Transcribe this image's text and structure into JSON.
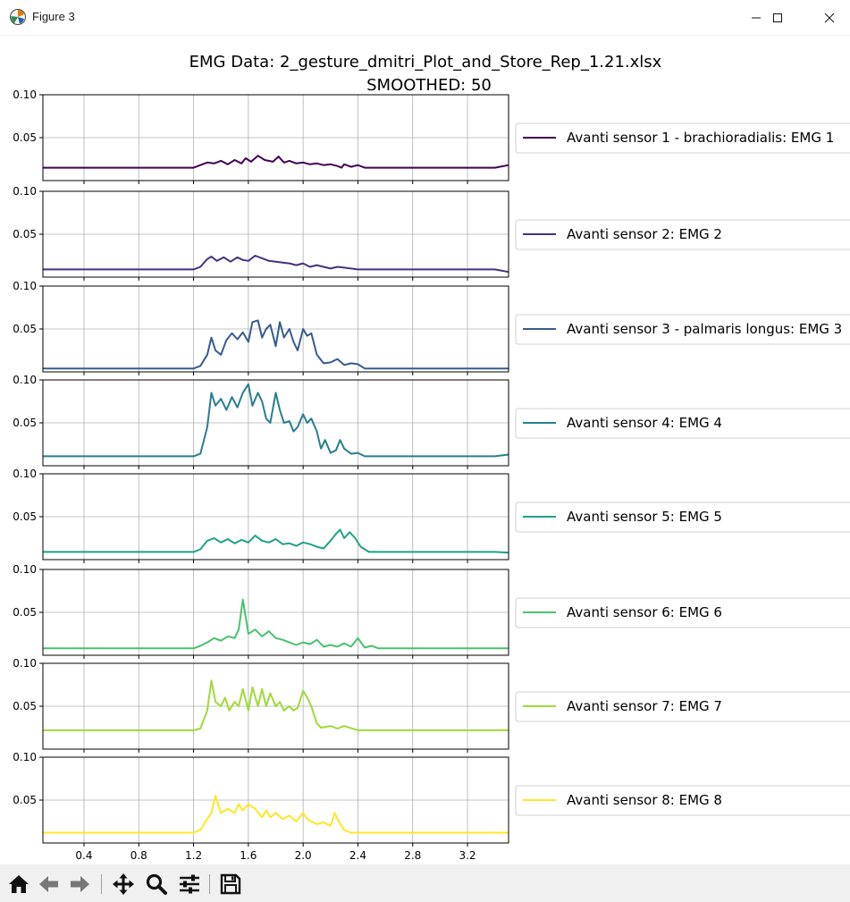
{
  "window": {
    "title": "Figure 3",
    "controls": [
      "minimize",
      "maximize",
      "close"
    ]
  },
  "toolbar": {
    "buttons": [
      "home-icon",
      "back-icon",
      "forward-icon",
      "pan-icon",
      "zoom-icon",
      "configure-subplots-icon",
      "save-icon"
    ]
  },
  "chart_data": {
    "type": "line",
    "title": "EMG Data: 2_gesture_dmitri_Plot_and_Store_Rep_1.21.xlsx",
    "subtitle": "SMOOTHED: 50",
    "xlim": [
      0.1,
      3.5
    ],
    "xticks": [
      "0.4",
      "0.8",
      "1.2",
      "1.6",
      "2.0",
      "2.4",
      "2.8",
      "3.2"
    ],
    "ylim": [
      0,
      0.1
    ],
    "yticks": [
      "0.05",
      "0.10"
    ],
    "grid": true,
    "legend_position": "right",
    "shared_x": true,
    "series": [
      {
        "name": "Avanti sensor 1 - brachioradialis: EMG 1",
        "color": "#440154",
        "baseline": 0.015,
        "points": [
          [
            0.1,
            0.015
          ],
          [
            1.2,
            0.015
          ],
          [
            1.25,
            0.018
          ],
          [
            1.3,
            0.021
          ],
          [
            1.35,
            0.02
          ],
          [
            1.4,
            0.023
          ],
          [
            1.45,
            0.019
          ],
          [
            1.5,
            0.024
          ],
          [
            1.55,
            0.02
          ],
          [
            1.58,
            0.026
          ],
          [
            1.62,
            0.022
          ],
          [
            1.67,
            0.029
          ],
          [
            1.72,
            0.024
          ],
          [
            1.78,
            0.022
          ],
          [
            1.82,
            0.028
          ],
          [
            1.86,
            0.021
          ],
          [
            1.9,
            0.023
          ],
          [
            1.95,
            0.02
          ],
          [
            2.0,
            0.021
          ],
          [
            2.05,
            0.019
          ],
          [
            2.1,
            0.02
          ],
          [
            2.15,
            0.018
          ],
          [
            2.2,
            0.019
          ],
          [
            2.25,
            0.017
          ],
          [
            2.28,
            0.015
          ],
          [
            2.3,
            0.019
          ],
          [
            2.35,
            0.016
          ],
          [
            2.4,
            0.018
          ],
          [
            2.45,
            0.015
          ],
          [
            3.4,
            0.015
          ],
          [
            3.5,
            0.018
          ]
        ]
      },
      {
        "name": "Avanti sensor 2: EMG 2",
        "color": "#46327e",
        "baseline": 0.009,
        "points": [
          [
            0.1,
            0.009
          ],
          [
            1.2,
            0.009
          ],
          [
            1.25,
            0.012
          ],
          [
            1.3,
            0.021
          ],
          [
            1.33,
            0.024
          ],
          [
            1.37,
            0.019
          ],
          [
            1.42,
            0.023
          ],
          [
            1.47,
            0.018
          ],
          [
            1.52,
            0.023
          ],
          [
            1.56,
            0.02
          ],
          [
            1.6,
            0.019
          ],
          [
            1.65,
            0.025
          ],
          [
            1.7,
            0.022
          ],
          [
            1.75,
            0.019
          ],
          [
            1.8,
            0.018
          ],
          [
            1.85,
            0.017
          ],
          [
            1.9,
            0.016
          ],
          [
            1.95,
            0.014
          ],
          [
            2.0,
            0.016
          ],
          [
            2.05,
            0.012
          ],
          [
            2.1,
            0.014
          ],
          [
            2.15,
            0.012
          ],
          [
            2.2,
            0.01
          ],
          [
            2.25,
            0.012
          ],
          [
            2.3,
            0.011
          ],
          [
            2.4,
            0.009
          ],
          [
            3.4,
            0.009
          ],
          [
            3.5,
            0.006
          ]
        ]
      },
      {
        "name": "Avanti sensor 3 - palmaris longus: EMG 3",
        "color": "#365c8d",
        "baseline": 0.004,
        "points": [
          [
            0.1,
            0.004
          ],
          [
            1.2,
            0.004
          ],
          [
            1.25,
            0.007
          ],
          [
            1.3,
            0.02
          ],
          [
            1.33,
            0.04
          ],
          [
            1.36,
            0.025
          ],
          [
            1.4,
            0.02
          ],
          [
            1.44,
            0.037
          ],
          [
            1.48,
            0.045
          ],
          [
            1.52,
            0.038
          ],
          [
            1.56,
            0.046
          ],
          [
            1.6,
            0.035
          ],
          [
            1.63,
            0.058
          ],
          [
            1.67,
            0.06
          ],
          [
            1.7,
            0.04
          ],
          [
            1.73,
            0.05
          ],
          [
            1.76,
            0.055
          ],
          [
            1.8,
            0.03
          ],
          [
            1.83,
            0.058
          ],
          [
            1.86,
            0.04
          ],
          [
            1.9,
            0.05
          ],
          [
            1.93,
            0.035
          ],
          [
            1.96,
            0.025
          ],
          [
            2.0,
            0.05
          ],
          [
            2.03,
            0.042
          ],
          [
            2.06,
            0.045
          ],
          [
            2.1,
            0.02
          ],
          [
            2.15,
            0.01
          ],
          [
            2.2,
            0.011
          ],
          [
            2.25,
            0.015
          ],
          [
            2.3,
            0.008
          ],
          [
            2.35,
            0.01
          ],
          [
            2.4,
            0.009
          ],
          [
            2.45,
            0.004
          ],
          [
            3.4,
            0.004
          ],
          [
            3.5,
            0.004
          ]
        ]
      },
      {
        "name": "Avanti sensor 4: EMG 4",
        "color": "#277f8e",
        "baseline": 0.011,
        "points": [
          [
            0.1,
            0.011
          ],
          [
            1.2,
            0.011
          ],
          [
            1.25,
            0.014
          ],
          [
            1.3,
            0.045
          ],
          [
            1.33,
            0.085
          ],
          [
            1.36,
            0.07
          ],
          [
            1.4,
            0.078
          ],
          [
            1.44,
            0.065
          ],
          [
            1.48,
            0.08
          ],
          [
            1.52,
            0.068
          ],
          [
            1.56,
            0.085
          ],
          [
            1.6,
            0.095
          ],
          [
            1.63,
            0.07
          ],
          [
            1.67,
            0.085
          ],
          [
            1.7,
            0.075
          ],
          [
            1.73,
            0.055
          ],
          [
            1.76,
            0.05
          ],
          [
            1.8,
            0.085
          ],
          [
            1.83,
            0.065
          ],
          [
            1.86,
            0.05
          ],
          [
            1.9,
            0.052
          ],
          [
            1.93,
            0.04
          ],
          [
            1.96,
            0.045
          ],
          [
            2.0,
            0.06
          ],
          [
            2.03,
            0.05
          ],
          [
            2.06,
            0.055
          ],
          [
            2.1,
            0.04
          ],
          [
            2.13,
            0.02
          ],
          [
            2.16,
            0.03
          ],
          [
            2.2,
            0.015
          ],
          [
            2.24,
            0.018
          ],
          [
            2.27,
            0.03
          ],
          [
            2.3,
            0.02
          ],
          [
            2.35,
            0.014
          ],
          [
            2.4,
            0.015
          ],
          [
            2.45,
            0.011
          ],
          [
            3.4,
            0.011
          ],
          [
            3.5,
            0.013
          ]
        ]
      },
      {
        "name": "Avanti sensor 5: EMG 5",
        "color": "#1fa187",
        "baseline": 0.009,
        "points": [
          [
            0.1,
            0.009
          ],
          [
            1.2,
            0.009
          ],
          [
            1.25,
            0.012
          ],
          [
            1.3,
            0.022
          ],
          [
            1.35,
            0.025
          ],
          [
            1.4,
            0.02
          ],
          [
            1.45,
            0.024
          ],
          [
            1.5,
            0.019
          ],
          [
            1.55,
            0.023
          ],
          [
            1.6,
            0.02
          ],
          [
            1.65,
            0.028
          ],
          [
            1.7,
            0.022
          ],
          [
            1.75,
            0.02
          ],
          [
            1.8,
            0.024
          ],
          [
            1.85,
            0.018
          ],
          [
            1.9,
            0.019
          ],
          [
            1.95,
            0.016
          ],
          [
            2.0,
            0.02
          ],
          [
            2.05,
            0.018
          ],
          [
            2.1,
            0.015
          ],
          [
            2.15,
            0.013
          ],
          [
            2.2,
            0.022
          ],
          [
            2.24,
            0.03
          ],
          [
            2.27,
            0.035
          ],
          [
            2.3,
            0.025
          ],
          [
            2.34,
            0.032
          ],
          [
            2.38,
            0.025
          ],
          [
            2.42,
            0.015
          ],
          [
            2.48,
            0.009
          ],
          [
            3.4,
            0.009
          ],
          [
            3.5,
            0.008
          ]
        ]
      },
      {
        "name": "Avanti sensor 6: EMG 6",
        "color": "#4ac16d",
        "baseline": 0.008,
        "points": [
          [
            0.1,
            0.008
          ],
          [
            1.2,
            0.008
          ],
          [
            1.25,
            0.011
          ],
          [
            1.3,
            0.015
          ],
          [
            1.35,
            0.02
          ],
          [
            1.4,
            0.017
          ],
          [
            1.45,
            0.022
          ],
          [
            1.5,
            0.02
          ],
          [
            1.53,
            0.03
          ],
          [
            1.56,
            0.065
          ],
          [
            1.6,
            0.025
          ],
          [
            1.65,
            0.03
          ],
          [
            1.7,
            0.022
          ],
          [
            1.75,
            0.028
          ],
          [
            1.8,
            0.02
          ],
          [
            1.85,
            0.018
          ],
          [
            1.9,
            0.015
          ],
          [
            1.95,
            0.012
          ],
          [
            2.0,
            0.015
          ],
          [
            2.05,
            0.013
          ],
          [
            2.1,
            0.018
          ],
          [
            2.15,
            0.01
          ],
          [
            2.2,
            0.012
          ],
          [
            2.25,
            0.01
          ],
          [
            2.3,
            0.014
          ],
          [
            2.35,
            0.01
          ],
          [
            2.4,
            0.02
          ],
          [
            2.45,
            0.009
          ],
          [
            2.5,
            0.011
          ],
          [
            2.55,
            0.008
          ],
          [
            3.4,
            0.008
          ],
          [
            3.5,
            0.008
          ]
        ]
      },
      {
        "name": "Avanti sensor 7: EMG 7",
        "color": "#9fda3a",
        "baseline": 0.022,
        "points": [
          [
            0.1,
            0.022
          ],
          [
            1.2,
            0.022
          ],
          [
            1.25,
            0.024
          ],
          [
            1.3,
            0.045
          ],
          [
            1.33,
            0.08
          ],
          [
            1.36,
            0.055
          ],
          [
            1.4,
            0.05
          ],
          [
            1.43,
            0.06
          ],
          [
            1.46,
            0.045
          ],
          [
            1.5,
            0.055
          ],
          [
            1.53,
            0.05
          ],
          [
            1.56,
            0.07
          ],
          [
            1.6,
            0.045
          ],
          [
            1.63,
            0.072
          ],
          [
            1.67,
            0.05
          ],
          [
            1.7,
            0.07
          ],
          [
            1.73,
            0.05
          ],
          [
            1.76,
            0.065
          ],
          [
            1.8,
            0.05
          ],
          [
            1.83,
            0.055
          ],
          [
            1.86,
            0.045
          ],
          [
            1.9,
            0.05
          ],
          [
            1.93,
            0.045
          ],
          [
            1.96,
            0.048
          ],
          [
            2.0,
            0.068
          ],
          [
            2.03,
            0.06
          ],
          [
            2.06,
            0.05
          ],
          [
            2.1,
            0.03
          ],
          [
            2.13,
            0.025
          ],
          [
            2.2,
            0.027
          ],
          [
            2.25,
            0.024
          ],
          [
            2.3,
            0.027
          ],
          [
            2.4,
            0.022
          ],
          [
            3.4,
            0.022
          ],
          [
            3.5,
            0.022
          ]
        ]
      },
      {
        "name": "Avanti sensor 8: EMG 8",
        "color": "#fde725",
        "baseline": 0.012,
        "points": [
          [
            0.1,
            0.012
          ],
          [
            1.2,
            0.012
          ],
          [
            1.25,
            0.015
          ],
          [
            1.3,
            0.028
          ],
          [
            1.33,
            0.035
          ],
          [
            1.36,
            0.055
          ],
          [
            1.4,
            0.035
          ],
          [
            1.45,
            0.04
          ],
          [
            1.5,
            0.035
          ],
          [
            1.53,
            0.045
          ],
          [
            1.56,
            0.038
          ],
          [
            1.6,
            0.045
          ],
          [
            1.65,
            0.04
          ],
          [
            1.7,
            0.03
          ],
          [
            1.73,
            0.038
          ],
          [
            1.76,
            0.03
          ],
          [
            1.8,
            0.035
          ],
          [
            1.85,
            0.028
          ],
          [
            1.9,
            0.032
          ],
          [
            1.95,
            0.025
          ],
          [
            2.0,
            0.035
          ],
          [
            2.03,
            0.028
          ],
          [
            2.06,
            0.025
          ],
          [
            2.1,
            0.022
          ],
          [
            2.15,
            0.024
          ],
          [
            2.2,
            0.02
          ],
          [
            2.23,
            0.035
          ],
          [
            2.26,
            0.025
          ],
          [
            2.3,
            0.015
          ],
          [
            2.35,
            0.012
          ],
          [
            3.4,
            0.012
          ],
          [
            3.5,
            0.012
          ]
        ]
      }
    ]
  }
}
